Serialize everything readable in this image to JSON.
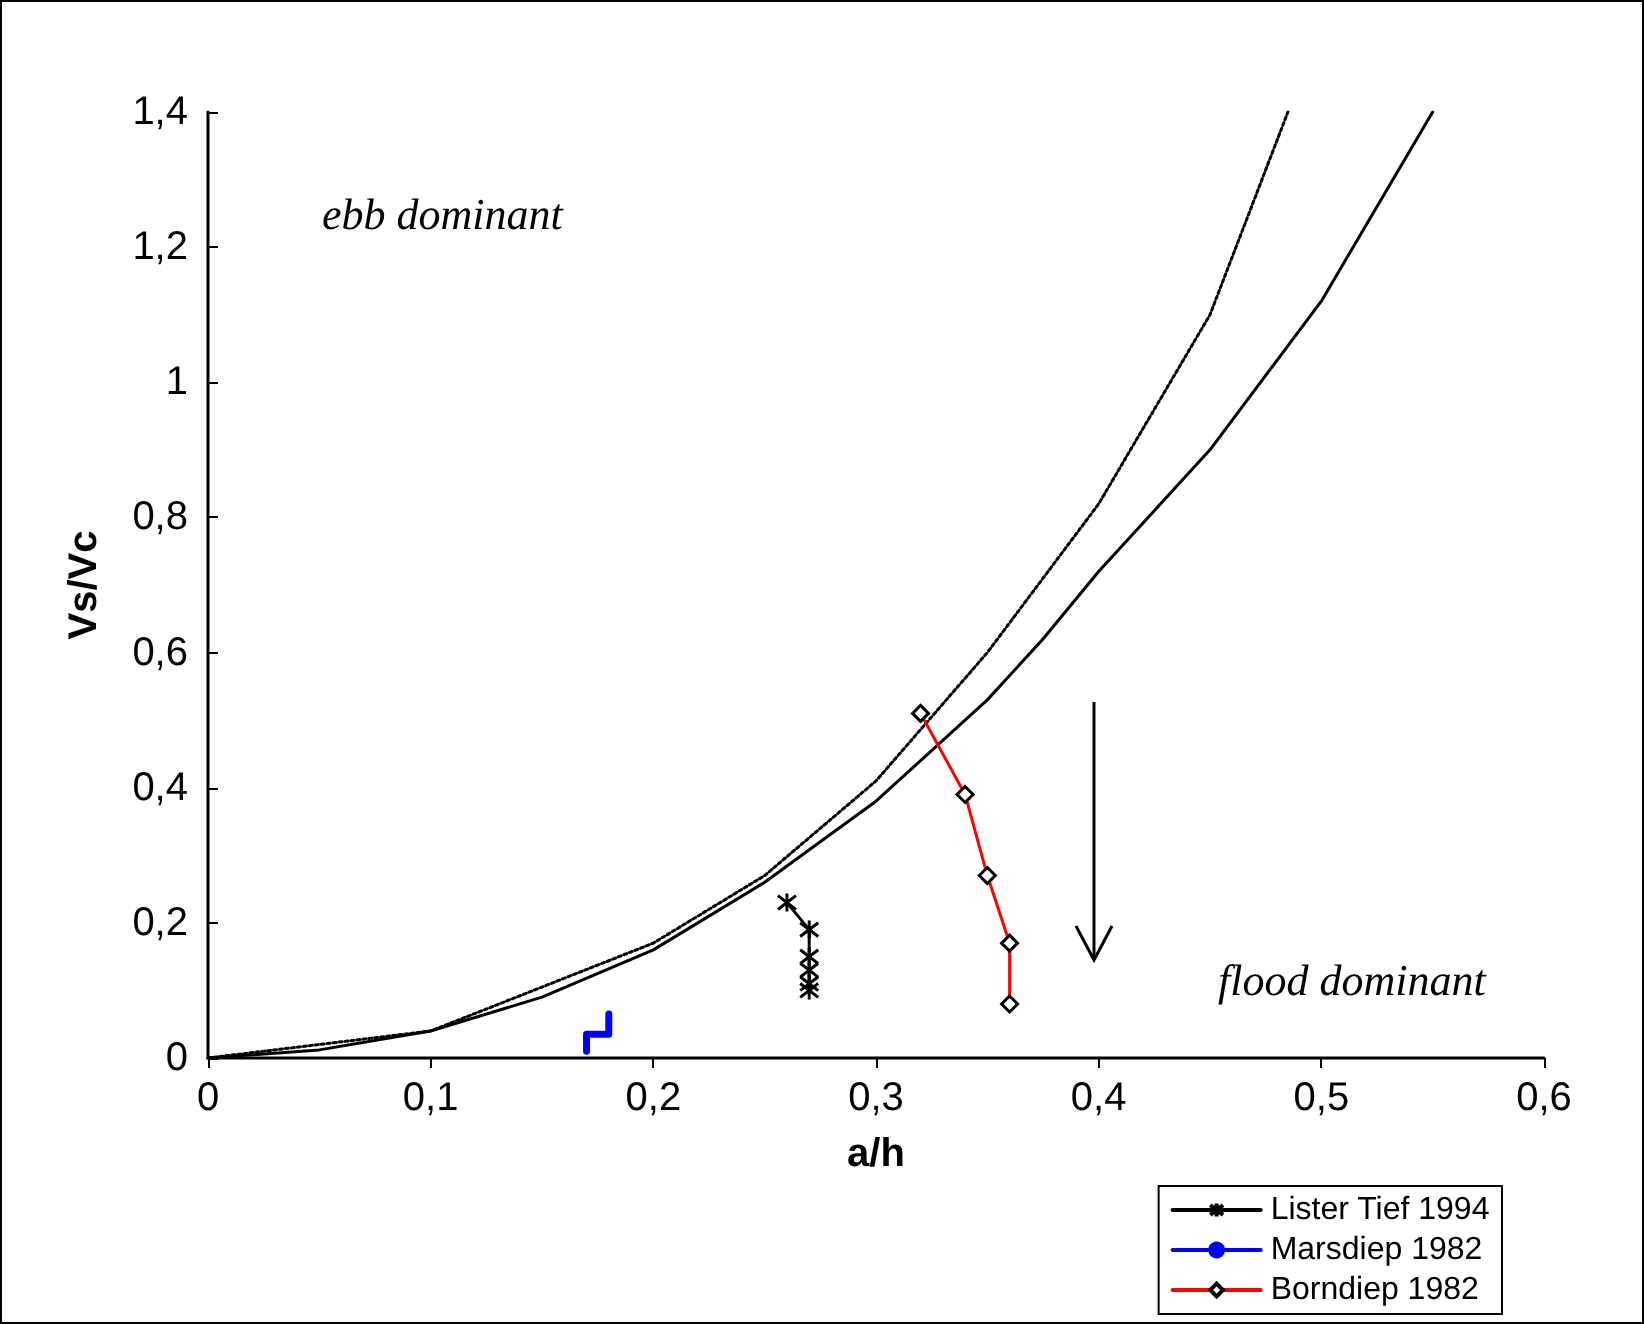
{
  "chart_data": {
    "type": "line",
    "xlabel": "a/h",
    "ylabel": "Vs/Vc",
    "annotations": [
      "ebb dominant",
      "flood dominant"
    ],
    "xlim": [
      0,
      0.6
    ],
    "xticks": [
      0,
      {
        "value": 0.1,
        "label": "0,1"
      },
      {
        "value": 0.2,
        "label": "0,2"
      },
      {
        "value": 0.3,
        "label": "0,3"
      },
      {
        "value": 0.4,
        "label": "0,4"
      },
      {
        "value": 0.5,
        "label": "0,5"
      },
      {
        "value": 0.6,
        "label": "0,6"
      }
    ],
    "ylim": [
      0,
      1.4
    ],
    "yticks": [
      0,
      {
        "value": 0.2,
        "label": "0,2"
      },
      {
        "value": 0.4,
        "label": "0,4"
      },
      {
        "value": 0.6,
        "label": "0,6"
      },
      {
        "value": 0.8,
        "label": "0,8"
      },
      1,
      {
        "value": 1.2,
        "label": "1,2"
      },
      {
        "value": 1.4,
        "label": "1,4"
      }
    ],
    "grid": false,
    "legend": "bottom right",
    "marker": "none",
    "series": [
      {
        "color": "#000000",
        "line_style": "solid",
        "x": [
          0,
          0.05,
          0.1,
          0.15,
          0.2,
          0.25,
          0.3,
          0.35,
          0.375,
          0.4,
          0.45,
          0.5,
          0.55
        ],
        "values": [
          0,
          0.012,
          0.04,
          0.09,
          0.16,
          0.26,
          0.38,
          0.53,
          0.62,
          0.72,
          0.9,
          1.12,
          1.4
        ]
      },
      {
        "color": "#000000",
        "line_style": "dotted",
        "x": [
          0,
          0.1,
          0.2,
          0.25,
          0.3,
          0.35,
          0.4,
          0.45,
          0.485
        ],
        "values": [
          0,
          0.04,
          0.17,
          0.27,
          0.41,
          0.6,
          0.82,
          1.1,
          1.4
        ]
      },
      {
        "name": "Lister Tief 1994",
        "color": "#000000",
        "marker": "cross",
        "x": [
          0.26,
          0.27,
          0.27,
          0.27,
          0.27,
          0.27
        ],
        "values": [
          0.23,
          0.19,
          0.15,
          0.13,
          0.11,
          0.1
        ]
      },
      {
        "name": "Marsdiep 1982",
        "color": "#0000ff",
        "x": [
          0.17,
          0.17,
          0.18,
          0.18
        ],
        "values": [
          0.01,
          0.035,
          0.035,
          0.065
        ]
      },
      {
        "name": "Borndiep 1982",
        "color": "#ff0000",
        "marker": "diamond",
        "x": [
          0.32,
          0.34,
          0.35,
          0.36,
          0.36
        ],
        "values": [
          0.51,
          0.39,
          0.27,
          0.17,
          0.08
        ]
      }
    ]
  }
}
